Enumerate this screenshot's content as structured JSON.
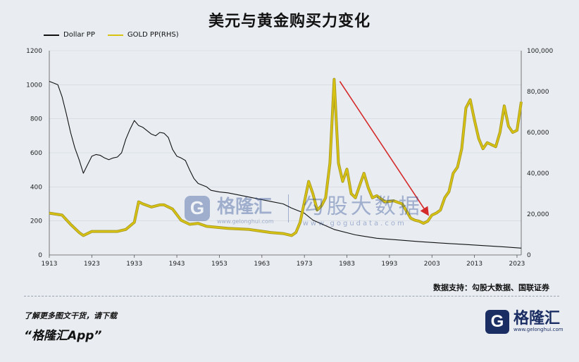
{
  "title": "美元与黄金购买力变化",
  "legend": {
    "dollar": "Dollar PP",
    "gold": "GOLD PP(RHS)"
  },
  "colors": {
    "dollar": "#111111",
    "gold": "#d8c313",
    "gold_edge": "#a89920",
    "arrow": "#d42a2a",
    "grid": "#cfd5dc"
  },
  "watermark": {
    "logo_letter": "G",
    "name": "格隆汇",
    "domain": "www.gelonghui.com",
    "name2": "勾股大数据",
    "domain2": "www.gogudata.com"
  },
  "source": "数据支持：勾股大数据、国联证券",
  "promo": {
    "line1": "了解更多图文干货，请下载",
    "line2": "“格隆汇App”"
  },
  "brand": {
    "logo_letter": "G",
    "name": "格隆汇",
    "domain": "www.gelonghui.com"
  },
  "chart_data": {
    "type": "line",
    "x_ticks": [
      1913,
      1923,
      1933,
      1943,
      1953,
      1963,
      1973,
      1983,
      1993,
      2003,
      2013,
      2023
    ],
    "xlim": [
      1913,
      2024
    ],
    "y_left": {
      "ylim": [
        0,
        1200
      ],
      "ticks": [
        "0",
        "200",
        "400",
        "600",
        "800",
        "1000",
        "1200"
      ]
    },
    "y_right": {
      "ylim": [
        0,
        100000
      ],
      "ticks": [
        "0",
        "20,000",
        "40,000",
        "60,000",
        "80,000",
        "100,000"
      ]
    },
    "series": [
      {
        "name": "Dollar PP",
        "axis": "left",
        "x": [
          1913,
          1914,
          1915,
          1916,
          1917,
          1918,
          1919,
          1920,
          1921,
          1922,
          1923,
          1924,
          1925,
          1926,
          1927,
          1928,
          1929,
          1930,
          1931,
          1932,
          1933,
          1934,
          1935,
          1936,
          1937,
          1938,
          1939,
          1940,
          1941,
          1942,
          1943,
          1944,
          1945,
          1946,
          1947,
          1948,
          1949,
          1950,
          1951,
          1953,
          1955,
          1957,
          1960,
          1965,
          1968,
          1970,
          1973,
          1975,
          1980,
          1985,
          1990,
          1995,
          2000,
          2005,
          2010,
          2015,
          2020,
          2024
        ],
        "y": [
          1020,
          1010,
          1000,
          930,
          830,
          720,
          630,
          560,
          480,
          530,
          580,
          590,
          585,
          570,
          560,
          570,
          575,
          600,
          680,
          740,
          790,
          760,
          750,
          730,
          710,
          700,
          720,
          715,
          690,
          620,
          580,
          570,
          555,
          500,
          450,
          420,
          410,
          400,
          380,
          370,
          365,
          355,
          340,
          315,
          300,
          275,
          245,
          205,
          150,
          118,
          98,
          88,
          78,
          70,
          63,
          55,
          47,
          40
        ]
      },
      {
        "name": "GOLD PP(RHS)",
        "axis": "right",
        "x": [
          1913,
          1916,
          1918,
          1920,
          1921,
          1923,
          1926,
          1929,
          1931,
          1933,
          1934,
          1935,
          1937,
          1939,
          1940,
          1942,
          1944,
          1946,
          1948,
          1950,
          1955,
          1960,
          1965,
          1968,
          1970,
          1971,
          1972,
          1973,
          1974,
          1975,
          1976,
          1977,
          1978,
          1979,
          1980,
          1981,
          1982,
          1983,
          1984,
          1985,
          1986,
          1987,
          1988,
          1989,
          1990,
          1992,
          1994,
          1996,
          1998,
          1999,
          2000,
          2001,
          2002,
          2003,
          2004,
          2005,
          2006,
          2007,
          2008,
          2009,
          2010,
          2011,
          2012,
          2013,
          2014,
          2015,
          2016,
          2017,
          2018,
          2019,
          2020,
          2021,
          2022,
          2023,
          2024
        ],
        "y": [
          20500,
          19500,
          15000,
          11000,
          9500,
          11500,
          11500,
          11500,
          12500,
          16000,
          26000,
          25000,
          23500,
          24500,
          24500,
          22500,
          17000,
          15000,
          15500,
          14000,
          13000,
          12500,
          11000,
          10500,
          9500,
          11000,
          16000,
          26000,
          36000,
          30000,
          22000,
          24000,
          28000,
          45000,
          86000,
          45000,
          36000,
          42000,
          30000,
          28000,
          34000,
          40000,
          33000,
          28000,
          29000,
          26000,
          26500,
          25000,
          18000,
          17000,
          16500,
          15500,
          16500,
          19500,
          20500,
          22000,
          28000,
          31000,
          40000,
          43000,
          52000,
          72000,
          76000,
          66000,
          57000,
          52000,
          55000,
          54000,
          53000,
          60000,
          73000,
          63000,
          60000,
          61000,
          75000
        ]
      }
    ],
    "annotation": {
      "type": "arrow",
      "from": [
        1980,
        85000
      ],
      "to": [
        2002,
        20000
      ]
    }
  }
}
